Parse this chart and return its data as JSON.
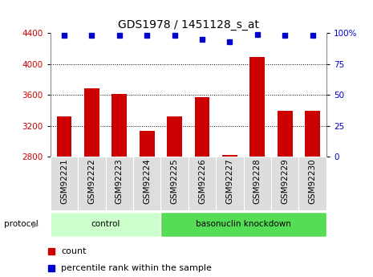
{
  "title": "GDS1978 / 1451128_s_at",
  "samples": [
    "GSM92221",
    "GSM92222",
    "GSM92223",
    "GSM92224",
    "GSM92225",
    "GSM92226",
    "GSM92227",
    "GSM92228",
    "GSM92229",
    "GSM92230"
  ],
  "counts": [
    3320,
    3680,
    3610,
    3130,
    3320,
    3570,
    2820,
    4090,
    3390,
    3390
  ],
  "percentiles": [
    98,
    98,
    98,
    98,
    98,
    95,
    93,
    99,
    98,
    98
  ],
  "groups": [
    {
      "label": "control",
      "start": 0,
      "end": 4,
      "color": "#ccffcc"
    },
    {
      "label": "basonuclin knockdown",
      "start": 4,
      "end": 10,
      "color": "#55dd55"
    }
  ],
  "bar_color": "#cc0000",
  "dot_color": "#0000cc",
  "ylim_left": [
    2800,
    4400
  ],
  "ylim_right": [
    0,
    100
  ],
  "yticks_left": [
    2800,
    3200,
    3600,
    4000,
    4400
  ],
  "yticks_right": [
    0,
    25,
    50,
    75,
    100
  ],
  "yticklabels_right": [
    "0",
    "25",
    "50",
    "75",
    "100%"
  ],
  "grid_values": [
    3200,
    3600,
    4000
  ],
  "title_fontsize": 10,
  "tick_fontsize": 7.5,
  "label_fontsize": 8,
  "bar_width": 0.55,
  "protocol_label": "protocol",
  "legend_count_label": "count",
  "legend_pct_label": "percentile rank within the sample",
  "bg_color": "#ffffff",
  "spine_color": "#888888",
  "tick_label_color_left": "#cc0000",
  "tick_label_color_right": "#0000cc",
  "sample_box_color": "#dddddd"
}
